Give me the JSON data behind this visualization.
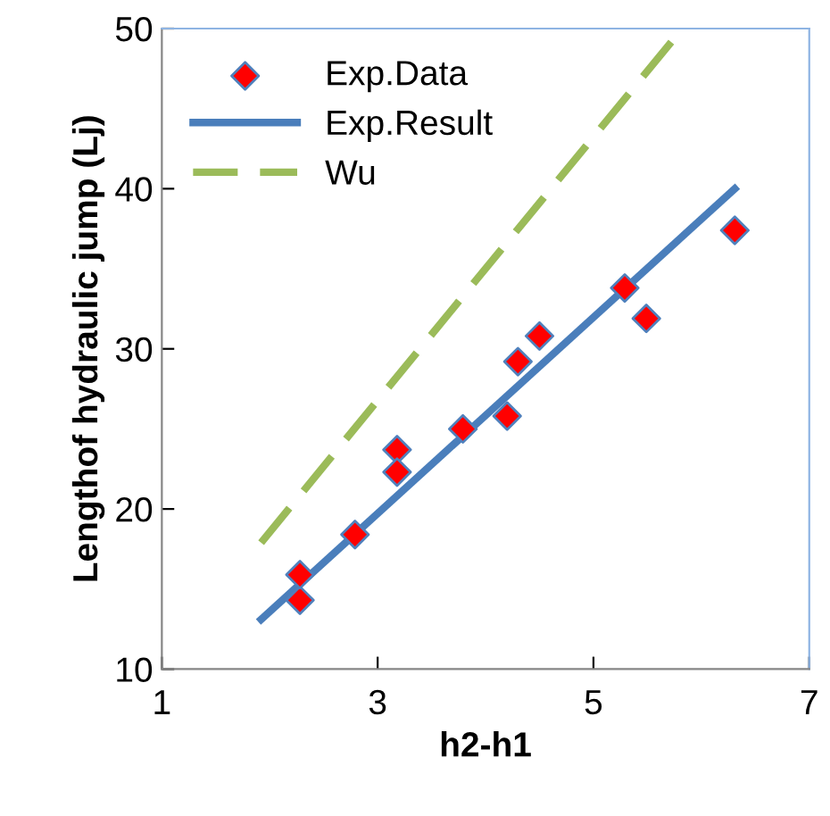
{
  "chart_data": {
    "type": "scatter",
    "xlabel": "h2-h1",
    "ylabel": "Lengthof hydraulic jump (Lj)",
    "xlim": [
      1,
      7
    ],
    "ylim": [
      10,
      50
    ],
    "xticks": [
      1,
      3,
      5,
      7
    ],
    "yticks": [
      10,
      20,
      30,
      40,
      50
    ],
    "grid": false,
    "legend": "top left",
    "series": [
      {
        "name": "Exp.Data",
        "marker": "diamond",
        "color": "#ff0000",
        "x": [
          2.28,
          2.28,
          2.79,
          3.18,
          3.18,
          3.79,
          4.2,
          4.3,
          4.5,
          5.29,
          5.49,
          6.31
        ],
        "values": [
          14.3,
          15.9,
          18.4,
          23.7,
          22.3,
          25.0,
          25.8,
          29.2,
          30.8,
          33.8,
          31.9,
          37.4
        ]
      },
      {
        "name": "Exp.Result",
        "type": "line",
        "line_style": "solid",
        "color": "#4a7ebb",
        "x": [
          1.92,
          6.31
        ],
        "values": [
          13.1,
          40.0
        ]
      },
      {
        "name": "Wu",
        "type": "line",
        "line_style": "dashed",
        "color": "#9bbb59",
        "x": [
          1.92,
          5.75
        ],
        "values": [
          17.9,
          49.4
        ]
      }
    ]
  }
}
